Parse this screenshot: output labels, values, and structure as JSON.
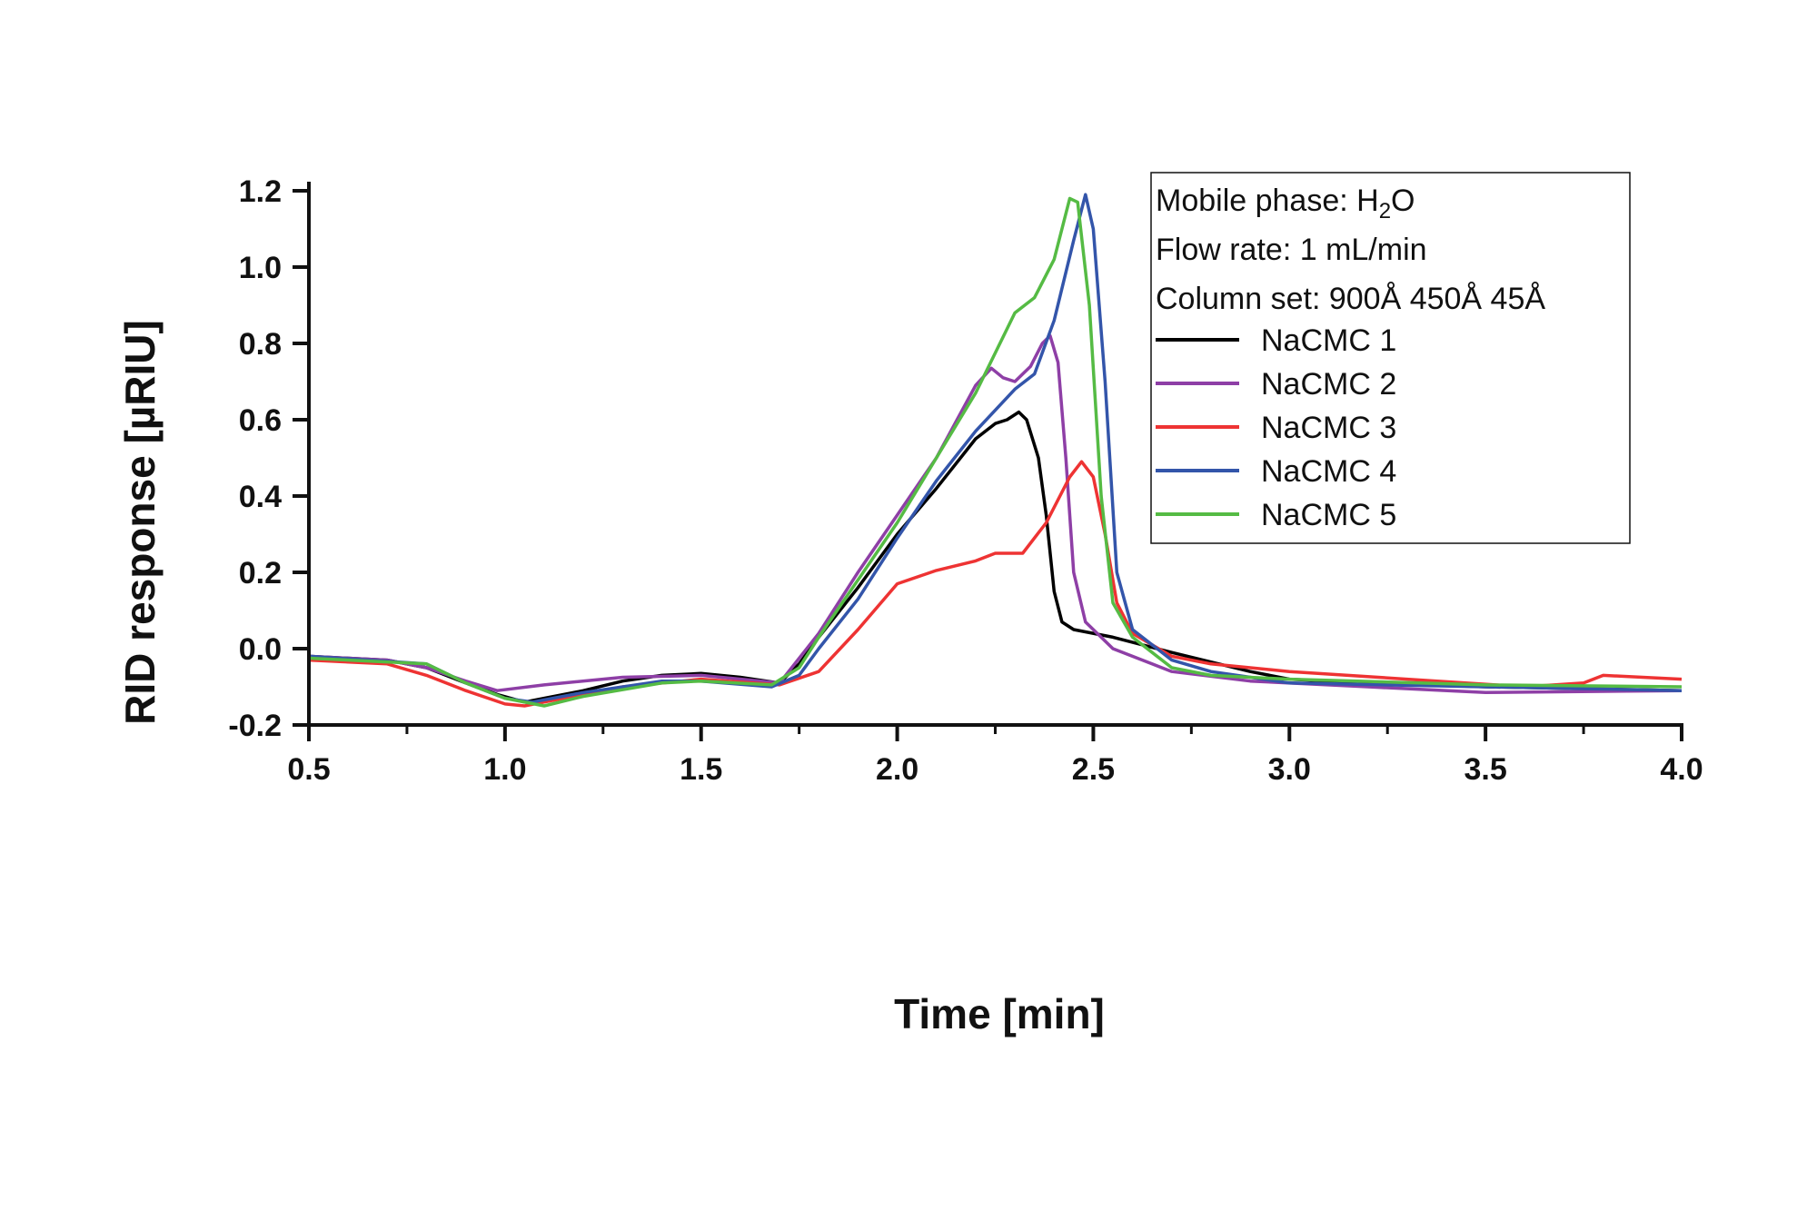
{
  "chart_data": {
    "type": "line",
    "xlabel": "Time [min]",
    "ylabel": "RID response [µRIU]",
    "xlim": [
      0.5,
      4.0
    ],
    "ylim": [
      -0.2,
      1.2
    ],
    "xticks": [
      "0.5",
      "1.0",
      "1.5",
      "2.0",
      "2.5",
      "3.0",
      "3.5",
      "4.0"
    ],
    "yticks": [
      "-0.2",
      "0.0",
      "0.2",
      "0.4",
      "0.6",
      "0.8",
      "1.0",
      "1.2"
    ],
    "grid": false,
    "legend_position": "top-right",
    "legend_notes": {
      "mobile_phase_prefix": "Mobile phase: H",
      "mobile_phase_sub": "2",
      "mobile_phase_suffix": "O",
      "flow_rate": "Flow rate: 1 mL/min",
      "column_set": "Column set: 900Å 450Å 45Å"
    },
    "series": [
      {
        "name": "NaCMC 1",
        "color": "#000000",
        "x": [
          0.5,
          0.6,
          0.7,
          0.8,
          0.9,
          0.98,
          1.05,
          1.1,
          1.2,
          1.3,
          1.4,
          1.5,
          1.6,
          1.7,
          1.75,
          1.8,
          1.9,
          2.0,
          2.1,
          2.2,
          2.25,
          2.28,
          2.31,
          2.33,
          2.36,
          2.38,
          2.4,
          2.42,
          2.45,
          2.55,
          2.7,
          2.9,
          3.0,
          3.2,
          3.5,
          4.0
        ],
        "y": [
          -0.02,
          -0.025,
          -0.03,
          -0.05,
          -0.09,
          -0.12,
          -0.14,
          -0.13,
          -0.11,
          -0.085,
          -0.07,
          -0.065,
          -0.075,
          -0.09,
          -0.04,
          0.03,
          0.16,
          0.3,
          0.42,
          0.55,
          0.59,
          0.6,
          0.62,
          0.6,
          0.5,
          0.35,
          0.15,
          0.07,
          0.05,
          0.03,
          -0.01,
          -0.06,
          -0.08,
          -0.09,
          -0.1,
          -0.11
        ]
      },
      {
        "name": "NaCMC 2",
        "color": "#8e3fa6",
        "x": [
          0.5,
          0.6,
          0.7,
          0.8,
          0.9,
          0.98,
          1.1,
          1.3,
          1.5,
          1.7,
          1.8,
          1.9,
          2.0,
          2.1,
          2.2,
          2.24,
          2.27,
          2.3,
          2.34,
          2.37,
          2.39,
          2.41,
          2.43,
          2.45,
          2.48,
          2.55,
          2.7,
          2.9,
          3.2,
          3.5,
          4.0
        ],
        "y": [
          -0.02,
          -0.025,
          -0.03,
          -0.05,
          -0.085,
          -0.11,
          -0.095,
          -0.075,
          -0.07,
          -0.09,
          0.04,
          0.2,
          0.35,
          0.5,
          0.69,
          0.735,
          0.71,
          0.7,
          0.74,
          0.8,
          0.82,
          0.75,
          0.5,
          0.2,
          0.07,
          0.0,
          -0.06,
          -0.085,
          -0.1,
          -0.115,
          -0.11
        ]
      },
      {
        "name": "NaCMC 3",
        "color": "#ee3333",
        "x": [
          0.5,
          0.7,
          0.8,
          0.9,
          1.0,
          1.05,
          1.1,
          1.3,
          1.5,
          1.7,
          1.8,
          1.9,
          2.0,
          2.1,
          2.2,
          2.25,
          2.32,
          2.38,
          2.44,
          2.47,
          2.5,
          2.53,
          2.56,
          2.6,
          2.7,
          2.8,
          3.0,
          3.3,
          3.6,
          3.75,
          3.8,
          4.0
        ],
        "y": [
          -0.03,
          -0.04,
          -0.07,
          -0.11,
          -0.145,
          -0.15,
          -0.14,
          -0.1,
          -0.08,
          -0.095,
          -0.06,
          0.05,
          0.17,
          0.205,
          0.23,
          0.25,
          0.25,
          0.33,
          0.45,
          0.49,
          0.45,
          0.3,
          0.12,
          0.04,
          -0.02,
          -0.04,
          -0.06,
          -0.08,
          -0.1,
          -0.09,
          -0.07,
          -0.08
        ]
      },
      {
        "name": "NaCMC 4",
        "color": "#3355aa",
        "x": [
          0.5,
          0.8,
          0.9,
          1.0,
          1.07,
          1.2,
          1.4,
          1.5,
          1.68,
          1.75,
          1.8,
          1.9,
          2.0,
          2.1,
          2.2,
          2.3,
          2.35,
          2.4,
          2.45,
          2.48,
          2.5,
          2.53,
          2.56,
          2.6,
          2.7,
          2.8,
          3.0,
          3.5,
          4.0
        ],
        "y": [
          -0.02,
          -0.04,
          -0.09,
          -0.13,
          -0.14,
          -0.115,
          -0.085,
          -0.085,
          -0.1,
          -0.07,
          0.0,
          0.13,
          0.29,
          0.44,
          0.57,
          0.68,
          0.72,
          0.86,
          1.07,
          1.19,
          1.1,
          0.7,
          0.2,
          0.05,
          -0.03,
          -0.06,
          -0.09,
          -0.1,
          -0.11
        ]
      },
      {
        "name": "NaCMC 5",
        "color": "#55bb44",
        "x": [
          0.5,
          0.8,
          0.9,
          1.0,
          1.1,
          1.2,
          1.4,
          1.5,
          1.68,
          1.75,
          1.8,
          1.9,
          2.0,
          2.1,
          2.2,
          2.3,
          2.35,
          2.4,
          2.44,
          2.46,
          2.49,
          2.52,
          2.55,
          2.6,
          2.7,
          2.8,
          3.0,
          3.5,
          4.0
        ],
        "y": [
          -0.025,
          -0.04,
          -0.09,
          -0.13,
          -0.15,
          -0.125,
          -0.09,
          -0.085,
          -0.095,
          -0.05,
          0.03,
          0.18,
          0.33,
          0.5,
          0.67,
          0.88,
          0.92,
          1.02,
          1.18,
          1.17,
          0.9,
          0.4,
          0.12,
          0.03,
          -0.05,
          -0.07,
          -0.08,
          -0.095,
          -0.1
        ]
      }
    ]
  }
}
